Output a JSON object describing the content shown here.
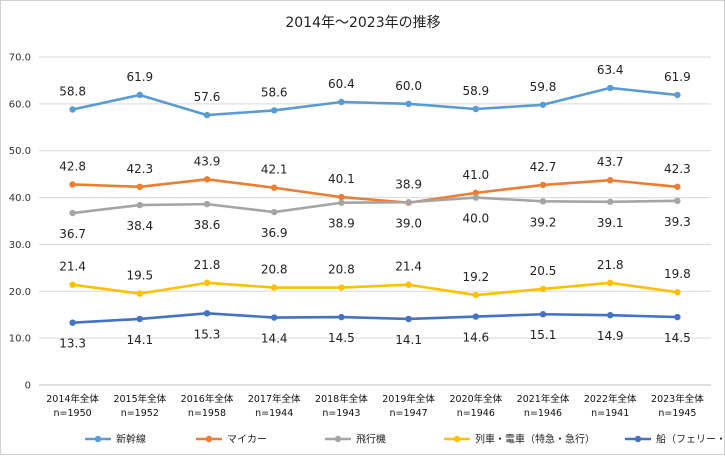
{
  "chart_data": {
    "type": "line",
    "title": "2014年～2023年の推移",
    "xlabel": "",
    "ylabel": "",
    "ylim": [
      0,
      70
    ],
    "ytick_labels": [
      "0",
      "10.0",
      "20.0",
      "30.0",
      "40.0",
      "50.0",
      "60.0",
      "70.0"
    ],
    "grid": true,
    "legend_position": "bottom",
    "categories": [
      {
        "year": "2014年全体",
        "n": "n=1950"
      },
      {
        "year": "2015年全体",
        "n": "n=1952"
      },
      {
        "year": "2016年全体",
        "n": "n=1958"
      },
      {
        "year": "2017年全体",
        "n": "n=1944"
      },
      {
        "year": "2018年全体",
        "n": "n=1943"
      },
      {
        "year": "2019年全体",
        "n": "n=1947"
      },
      {
        "year": "2020年全体",
        "n": "n=1946"
      },
      {
        "year": "2021年全体",
        "n": "n=1946"
      },
      {
        "year": "2022年全体",
        "n": "n=1941"
      },
      {
        "year": "2023年全体",
        "n": "n=1945"
      }
    ],
    "series": [
      {
        "name": "新幹線",
        "color": "#5b9bd5",
        "label_pos": "above",
        "values": [
          58.8,
          61.9,
          57.6,
          58.6,
          60.4,
          60.0,
          58.9,
          59.8,
          63.4,
          61.9
        ]
      },
      {
        "name": "マイカー",
        "color": "#ed7d31",
        "label_pos": "above",
        "values": [
          42.8,
          42.3,
          43.9,
          42.1,
          40.1,
          38.9,
          41.0,
          42.7,
          43.7,
          42.3
        ]
      },
      {
        "name": "飛行機",
        "color": "#a5a5a5",
        "label_pos": "below",
        "values": [
          36.7,
          38.4,
          38.6,
          36.9,
          38.9,
          39.0,
          40.0,
          39.2,
          39.1,
          39.3
        ]
      },
      {
        "name": "列車・電車（特急・急行）",
        "color": "#ffc000",
        "label_pos": "above",
        "values": [
          21.4,
          19.5,
          21.8,
          20.8,
          20.8,
          21.4,
          19.2,
          20.5,
          21.8,
          19.8
        ]
      },
      {
        "name": "船（フェリー・クルージングを含む）",
        "color": "#4472c4",
        "label_pos": "below",
        "values": [
          13.3,
          14.1,
          15.3,
          14.4,
          14.5,
          14.1,
          14.6,
          15.1,
          14.9,
          14.5
        ]
      }
    ]
  }
}
